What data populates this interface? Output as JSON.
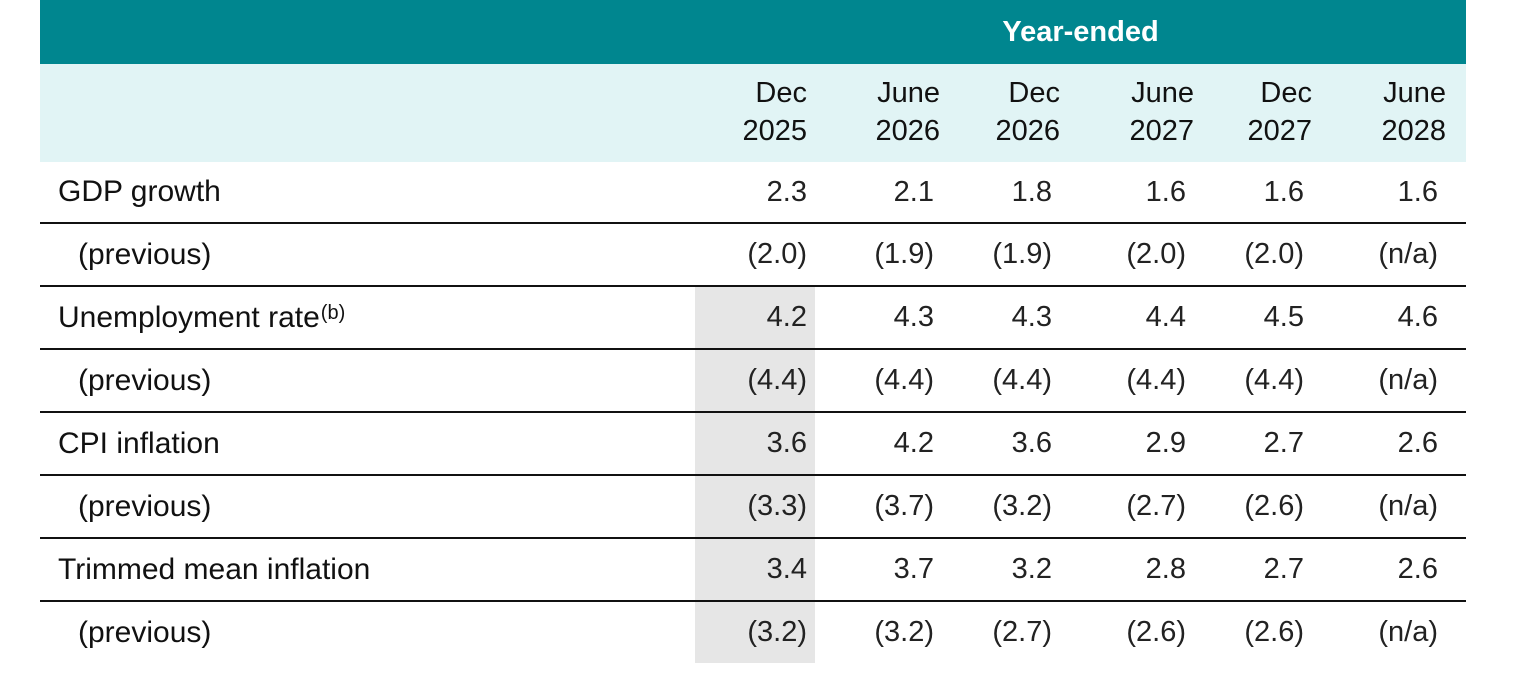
{
  "header": {
    "group_title": "Year-ended",
    "columns": [
      {
        "month": "Dec",
        "year": "2025"
      },
      {
        "month": "June",
        "year": "2026"
      },
      {
        "month": "Dec",
        "year": "2026"
      },
      {
        "month": "June",
        "year": "2027"
      },
      {
        "month": "Dec",
        "year": "2027"
      },
      {
        "month": "June",
        "year": "2028"
      }
    ]
  },
  "rows": [
    {
      "label": "GDP growth",
      "note": "",
      "values": [
        "2.3",
        "2.1",
        "1.8",
        "1.6",
        "1.6",
        "1.6"
      ],
      "shade_first": false
    },
    {
      "label": "(previous)",
      "note": "",
      "values": [
        "(2.0)",
        "(1.9)",
        "(1.9)",
        "(2.0)",
        "(2.0)",
        "(n/a)"
      ],
      "shade_first": false
    },
    {
      "label": "Unemployment rate",
      "note": "(b)",
      "values": [
        "4.2",
        "4.3",
        "4.3",
        "4.4",
        "4.5",
        "4.6"
      ],
      "shade_first": true
    },
    {
      "label": "(previous)",
      "note": "",
      "values": [
        "(4.4)",
        "(4.4)",
        "(4.4)",
        "(4.4)",
        "(4.4)",
        "(n/a)"
      ],
      "shade_first": true
    },
    {
      "label": "CPI inflation",
      "note": "",
      "values": [
        "3.6",
        "4.2",
        "3.6",
        "2.9",
        "2.7",
        "2.6"
      ],
      "shade_first": true
    },
    {
      "label": "(previous)",
      "note": "",
      "values": [
        "(3.3)",
        "(3.7)",
        "(3.2)",
        "(2.7)",
        "(2.6)",
        "(n/a)"
      ],
      "shade_first": true
    },
    {
      "label": "Trimmed mean inflation",
      "note": "",
      "values": [
        "3.4",
        "3.7",
        "3.2",
        "2.8",
        "2.7",
        "2.6"
      ],
      "shade_first": true
    },
    {
      "label": "(previous)",
      "note": "",
      "values": [
        "(3.2)",
        "(3.2)",
        "(2.7)",
        "(2.6)",
        "(2.6)",
        "(n/a)"
      ],
      "shade_first": true
    }
  ],
  "colors": {
    "banner": "#00868f",
    "header_band": "#e1f4f5",
    "shade": "#e6e6e6"
  }
}
